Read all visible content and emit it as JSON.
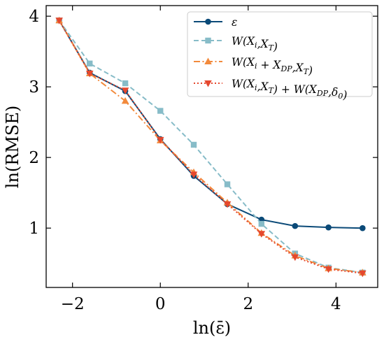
{
  "chart_data": {
    "type": "line",
    "xlabel": "ln(ε̄)",
    "ylabel": "ln(RMSE)",
    "xlim": [
      -2.6,
      4.95
    ],
    "ylim": [
      0.16,
      4.15
    ],
    "xticks": [
      -2,
      0,
      2,
      4
    ],
    "yticks": [
      1,
      2,
      3,
      4
    ],
    "xtick_labels": [
      "−2",
      "0",
      "2",
      "4"
    ],
    "ytick_labels": [
      "1",
      "2",
      "3",
      "4"
    ],
    "grid": false,
    "legend_position": "top-right",
    "series": [
      {
        "name": "ε",
        "color": "#0b4a78",
        "dash": "solid",
        "marker": "circle",
        "x": [
          -2.303,
          -1.609,
          -0.799,
          0.0,
          0.761,
          1.526,
          2.303,
          3.068,
          3.829,
          4.605
        ],
        "y": [
          3.94,
          3.2,
          2.94,
          2.26,
          1.74,
          1.34,
          1.12,
          1.03,
          1.01,
          1.0
        ]
      },
      {
        "name": "W(X_i, X_T)",
        "color": "#87bcc8",
        "dash": "dashed",
        "marker": "square",
        "x": [
          -2.303,
          -1.609,
          -0.799,
          0.0,
          0.761,
          1.526,
          2.303,
          3.068,
          3.829,
          4.605
        ],
        "y": [
          3.94,
          3.33,
          3.05,
          2.66,
          2.18,
          1.62,
          1.06,
          0.64,
          0.44,
          0.37
        ]
      },
      {
        "name": "W(X_i + X_DP, X_T)",
        "color": "#f28a3c",
        "dash": "dashdot",
        "marker": "triangle-up",
        "x": [
          -2.303,
          -1.609,
          -0.799,
          0.0,
          0.761,
          1.526,
          2.303,
          3.068,
          3.829,
          4.605
        ],
        "y": [
          3.94,
          3.19,
          2.8,
          2.24,
          1.79,
          1.36,
          0.93,
          0.61,
          0.43,
          0.37
        ]
      },
      {
        "name": "W(X_i, X_T) + W(X_DP, δ_0)",
        "color": "#e5482e",
        "dash": "dotted",
        "marker": "triangle-down",
        "x": [
          -2.303,
          -1.609,
          -0.799,
          0.0,
          0.761,
          1.526,
          2.303,
          3.068,
          3.829,
          4.605
        ],
        "y": [
          3.94,
          3.19,
          2.95,
          2.25,
          1.76,
          1.34,
          0.92,
          0.59,
          0.42,
          0.36
        ]
      }
    ]
  }
}
